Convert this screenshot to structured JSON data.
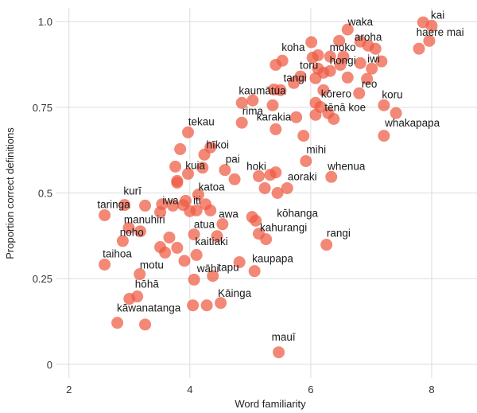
{
  "chart_data": {
    "type": "scatter",
    "title": "",
    "xlabel": "Word familiarity",
    "ylabel": "Proportion correct definitions",
    "xlim": [
      1.78,
      8.75
    ],
    "ylim": [
      -0.04,
      1.04
    ],
    "xticks": [
      2,
      4,
      6,
      8
    ],
    "xtick_labels": [
      "2",
      "4",
      "6",
      "8"
    ],
    "yticks": [
      0,
      0.25,
      0.5,
      0.75,
      1.0
    ],
    "ytick_labels": [
      "0",
      "0.25",
      "0.5",
      "0.75",
      "1.0"
    ],
    "grid": true,
    "point_color": "#ef5a43",
    "points": [
      [
        2.59,
        0.435
      ],
      [
        2.92,
        0.465
      ],
      [
        3.26,
        0.463
      ],
      [
        3.54,
        0.467
      ],
      [
        3.51,
        0.444
      ],
      [
        3.72,
        0.463
      ],
      [
        3.93,
        0.477
      ],
      [
        3.89,
        0.465
      ],
      [
        4.0,
        0.447
      ],
      [
        4.11,
        0.449
      ],
      [
        4.14,
        0.495
      ],
      [
        4.26,
        0.467
      ],
      [
        4.34,
        0.449
      ],
      [
        4.54,
        0.409
      ],
      [
        5.03,
        0.43
      ],
      [
        5.09,
        0.419
      ],
      [
        5.14,
        0.381
      ],
      [
        5.26,
        0.365
      ],
      [
        5.24,
        0.514
      ],
      [
        2.99,
        0.398
      ],
      [
        3.18,
        0.388
      ],
      [
        2.89,
        0.36
      ],
      [
        3.66,
        0.37
      ],
      [
        3.51,
        0.342
      ],
      [
        3.59,
        0.326
      ],
      [
        3.79,
        0.34
      ],
      [
        4.07,
        0.379
      ],
      [
        4.45,
        0.374
      ],
      [
        4.11,
        0.319
      ],
      [
        3.91,
        0.302
      ],
      [
        2.59,
        0.291
      ],
      [
        3.17,
        0.263
      ],
      [
        4.07,
        0.247
      ],
      [
        4.38,
        0.258
      ],
      [
        4.82,
        0.298
      ],
      [
        5.07,
        0.272
      ],
      [
        3.0,
        0.191
      ],
      [
        3.13,
        0.198
      ],
      [
        4.05,
        0.172
      ],
      [
        4.28,
        0.172
      ],
      [
        4.51,
        0.179
      ],
      [
        2.8,
        0.121
      ],
      [
        3.26,
        0.116
      ],
      [
        3.79,
        0.53
      ],
      [
        5.47,
        0.035
      ],
      [
        6.26,
        0.349
      ],
      [
        3.97,
        0.677
      ],
      [
        4.86,
        0.705
      ],
      [
        5.42,
        0.686
      ],
      [
        5.88,
        0.667
      ],
      [
        3.84,
        0.628
      ],
      [
        4.24,
        0.612
      ],
      [
        4.34,
        0.633
      ],
      [
        3.76,
        0.577
      ],
      [
        3.97,
        0.556
      ],
      [
        4.21,
        0.574
      ],
      [
        4.58,
        0.567
      ],
      [
        4.74,
        0.54
      ],
      [
        3.79,
        0.535
      ],
      [
        5.92,
        0.593
      ],
      [
        6.34,
        0.547
      ],
      [
        5.14,
        0.549
      ],
      [
        5.33,
        0.553
      ],
      [
        5.42,
        0.56
      ],
      [
        5.45,
        0.5
      ],
      [
        5.61,
        0.514
      ],
      [
        6.08,
        0.728
      ],
      [
        6.29,
        0.733
      ],
      [
        6.38,
        0.716
      ],
      [
        5.76,
        0.721
      ],
      [
        7.86,
        0.998
      ],
      [
        8.0,
        0.988
      ],
      [
        7.96,
        0.944
      ],
      [
        7.79,
        0.921
      ],
      [
        6.61,
        0.977
      ],
      [
        6.47,
        0.944
      ],
      [
        6.82,
        0.942
      ],
      [
        6.95,
        0.93
      ],
      [
        7.07,
        0.921
      ],
      [
        6.01,
        0.94
      ],
      [
        5.53,
        0.886
      ],
      [
        5.42,
        0.874
      ],
      [
        6.12,
        0.902
      ],
      [
        6.03,
        0.895
      ],
      [
        6.32,
        0.898
      ],
      [
        6.54,
        0.898
      ],
      [
        6.49,
        0.874
      ],
      [
        6.82,
        0.879
      ],
      [
        7.17,
        0.884
      ],
      [
        7.01,
        0.863
      ],
      [
        6.12,
        0.863
      ],
      [
        6.21,
        0.851
      ],
      [
        6.32,
        0.856
      ],
      [
        6.08,
        0.835
      ],
      [
        5.83,
        0.84
      ],
      [
        5.72,
        0.821
      ],
      [
        6.61,
        0.837
      ],
      [
        6.93,
        0.833
      ],
      [
        5.39,
        0.802
      ],
      [
        5.5,
        0.8
      ],
      [
        6.21,
        0.8
      ],
      [
        6.8,
        0.791
      ],
      [
        5.04,
        0.77
      ],
      [
        4.86,
        0.763
      ],
      [
        5.37,
        0.756
      ],
      [
        6.08,
        0.763
      ],
      [
        6.16,
        0.751
      ],
      [
        7.21,
        0.756
      ],
      [
        7.41,
        0.733
      ],
      [
        7.21,
        0.667
      ]
    ],
    "labels": [
      {
        "text": "waka",
        "x": 6.82,
        "y": 1.0
      },
      {
        "text": "kai",
        "x": 8.1,
        "y": 1.02
      },
      {
        "text": "haere mai",
        "x": 8.14,
        "y": 0.97
      },
      {
        "text": "aroha",
        "x": 6.95,
        "y": 0.956
      },
      {
        "text": "koha",
        "x": 5.71,
        "y": 0.926
      },
      {
        "text": "moko",
        "x": 6.53,
        "y": 0.926
      },
      {
        "text": "iwi",
        "x": 7.04,
        "y": 0.893
      },
      {
        "text": "hongi",
        "x": 6.53,
        "y": 0.888
      },
      {
        "text": "toru",
        "x": 5.97,
        "y": 0.874
      },
      {
        "text": "tangi",
        "x": 5.74,
        "y": 0.837
      },
      {
        "text": "reo",
        "x": 6.97,
        "y": 0.819
      },
      {
        "text": "kaumātua",
        "x": 5.2,
        "y": 0.8
      },
      {
        "text": "kōrero",
        "x": 6.42,
        "y": 0.79
      },
      {
        "text": "koru",
        "x": 7.35,
        "y": 0.788
      },
      {
        "text": "tēnā koe",
        "x": 6.57,
        "y": 0.751
      },
      {
        "text": "rima",
        "x": 5.04,
        "y": 0.74
      },
      {
        "text": "karakia",
        "x": 5.39,
        "y": 0.723
      },
      {
        "text": "whakapapa",
        "x": 7.68,
        "y": 0.705
      },
      {
        "text": "tekau",
        "x": 4.19,
        "y": 0.709
      },
      {
        "text": "mihi",
        "x": 6.09,
        "y": 0.628
      },
      {
        "text": "hīkoi",
        "x": 4.46,
        "y": 0.642
      },
      {
        "text": "pai",
        "x": 4.71,
        "y": 0.6
      },
      {
        "text": "kuia",
        "x": 4.09,
        "y": 0.581
      },
      {
        "text": "hoki",
        "x": 5.1,
        "y": 0.579
      },
      {
        "text": "whenua",
        "x": 6.59,
        "y": 0.579
      },
      {
        "text": "aoraki",
        "x": 5.86,
        "y": 0.549
      },
      {
        "text": "katoa",
        "x": 4.36,
        "y": 0.519
      },
      {
        "text": "kurī",
        "x": 3.05,
        "y": 0.507
      },
      {
        "text": "taringa",
        "x": 2.74,
        "y": 0.467
      },
      {
        "text": "iwa",
        "x": 3.68,
        "y": 0.479
      },
      {
        "text": "iti",
        "x": 4.12,
        "y": 0.479
      },
      {
        "text": "manuhiri",
        "x": 3.25,
        "y": 0.423
      },
      {
        "text": "awa",
        "x": 4.64,
        "y": 0.44
      },
      {
        "text": "noho",
        "x": 3.04,
        "y": 0.386
      },
      {
        "text": "atua",
        "x": 4.24,
        "y": 0.409
      },
      {
        "text": "kōhanga",
        "x": 5.78,
        "y": 0.442
      },
      {
        "text": "kahurangi",
        "x": 5.55,
        "y": 0.4
      },
      {
        "text": "kaitiaki",
        "x": 4.36,
        "y": 0.36
      },
      {
        "text": "taihoa",
        "x": 2.8,
        "y": 0.323
      },
      {
        "text": "rangi",
        "x": 6.46,
        "y": 0.384
      },
      {
        "text": "motu",
        "x": 3.37,
        "y": 0.291
      },
      {
        "text": "kaupapa",
        "x": 5.37,
        "y": 0.309
      },
      {
        "text": "wāhi",
        "x": 4.3,
        "y": 0.281
      },
      {
        "text": "tapu",
        "x": 4.64,
        "y": 0.284
      },
      {
        "text": "hōhā",
        "x": 3.29,
        "y": 0.235
      },
      {
        "text": "Kāinga",
        "x": 4.74,
        "y": 0.209
      },
      {
        "text": "kāwanatanga",
        "x": 3.32,
        "y": 0.165
      },
      {
        "text": "mauī",
        "x": 5.55,
        "y": 0.081
      }
    ]
  }
}
